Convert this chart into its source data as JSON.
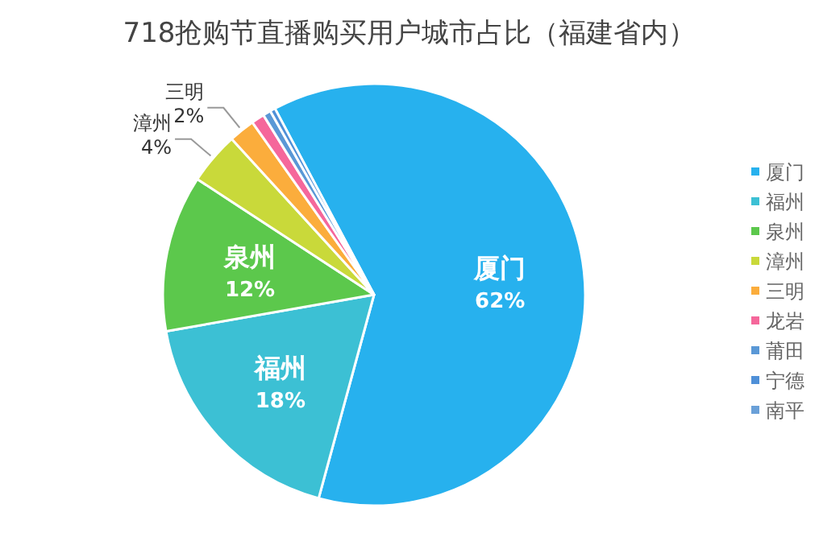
{
  "chart_data": {
    "type": "pie",
    "title": "718抢购节直播购买用户城市占比（福建省内）",
    "categories": [
      "厦门",
      "福州",
      "泉州",
      "漳州",
      "三明",
      "龙岩",
      "莆田",
      "宁德",
      "南平"
    ],
    "values": [
      62,
      18,
      12,
      4,
      2,
      1,
      0.6,
      0.4,
      null
    ],
    "colors": [
      "#27b1ee",
      "#3cc0d4",
      "#5cc84c",
      "#c9d93a",
      "#fbad3c",
      "#f5679b",
      "#5a98d6",
      "#4f90d8",
      "#6aa0d8"
    ],
    "value_labels": [
      "62%",
      "18%",
      "12%",
      "4%",
      "2%",
      null,
      null,
      null,
      null
    ],
    "legend": "right"
  }
}
